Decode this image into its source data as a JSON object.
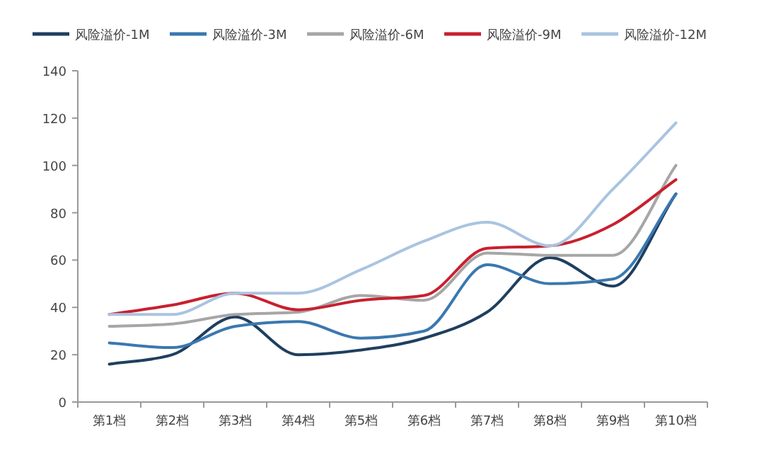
{
  "chart_data": {
    "type": "line",
    "categories": [
      "第1档",
      "第2档",
      "第3档",
      "第4档",
      "第5档",
      "第6档",
      "第7档",
      "第8档",
      "第9档",
      "第10档"
    ],
    "series": [
      {
        "name": "风险溢价-1M",
        "color": "#1f3f5f",
        "values": [
          16,
          20,
          36,
          20,
          22,
          27,
          38,
          61,
          49,
          88
        ]
      },
      {
        "name": "风险溢价-3M",
        "color": "#3a78b0",
        "values": [
          25,
          23,
          32,
          34,
          27,
          30,
          58,
          50,
          52,
          88
        ]
      },
      {
        "name": "风险溢价-6M",
        "color": "#a6a6a6",
        "values": [
          32,
          33,
          37,
          38,
          45,
          43,
          63,
          62,
          62,
          100
        ]
      },
      {
        "name": "风险溢价-9M",
        "color": "#c8202f",
        "values": [
          37,
          41,
          46,
          39,
          43,
          45,
          65,
          66,
          75,
          94
        ]
      },
      {
        "name": "风险溢价-12M",
        "color": "#a9c4e0",
        "values": [
          37,
          37,
          46,
          46,
          56,
          68,
          76,
          66,
          90,
          118
        ]
      }
    ],
    "ylim": [
      0,
      140
    ],
    "yticks": [
      0,
      20,
      40,
      60,
      80,
      100,
      120,
      140
    ],
    "grid": false,
    "legend": "top",
    "marker": "none",
    "line_style": "solid"
  }
}
